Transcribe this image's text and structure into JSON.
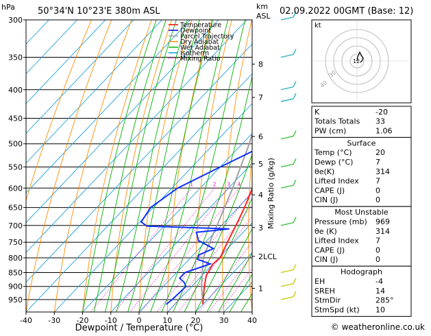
{
  "header": {
    "hpa_label": "hPa",
    "location": "50°34'N  10°23'E  380m  ASL",
    "km_label": "km",
    "asl_label": "ASL",
    "datetime": "02.09.2022  00GMT  (Base: 12)"
  },
  "legend": [
    {
      "label": "Temperature",
      "color": "#ff0000",
      "style": "solid"
    },
    {
      "label": "Dewpoint",
      "color": "#0000ff",
      "style": "solid"
    },
    {
      "label": "Parcel Trajectory",
      "color": "#a0a0a0",
      "style": "solid"
    },
    {
      "label": "Dry Adiabat",
      "color": "#ff8c00",
      "style": "solid"
    },
    {
      "label": "Wet Adiabat",
      "color": "#00b000",
      "style": "solid"
    },
    {
      "label": "Isotherm",
      "color": "#00a0e0",
      "style": "solid"
    },
    {
      "label": "Mixing Ratio",
      "color": "#ff00c0",
      "style": "dotted"
    }
  ],
  "chart_data": {
    "type": "skew-t",
    "xlabel": "Dewpoint / Temperature (°C)",
    "ylabel_right": "Mixing Ratio (g/kg)",
    "pressure_ticks": [
      300,
      350,
      400,
      450,
      500,
      550,
      600,
      650,
      700,
      750,
      800,
      850,
      900,
      950
    ],
    "temp_ticks": [
      -40,
      -30,
      -20,
      -10,
      0,
      10,
      20,
      30,
      40
    ],
    "xlim": [
      -40,
      40
    ],
    "plim": [
      300,
      1000
    ],
    "km_ticks": [
      {
        "label": "8",
        "p": 360
      },
      {
        "label": "7",
        "p": 413
      },
      {
        "label": "6",
        "p": 485
      },
      {
        "label": "5",
        "p": 543
      },
      {
        "label": "4",
        "p": 617
      },
      {
        "label": "3",
        "p": 706
      },
      {
        "label": "2LCL",
        "p": 795
      },
      {
        "label": "1",
        "p": 907
      }
    ],
    "mixing_ratio_labels": [
      "1",
      "2",
      "3",
      "4",
      "6",
      "8",
      "10",
      "16",
      "20",
      "25"
    ],
    "mixing_ratio_values": [
      1,
      2,
      3,
      4,
      6,
      8,
      10,
      16,
      20,
      25
    ],
    "temperature": [
      {
        "p": 969,
        "t": 20
      },
      {
        "p": 950,
        "t": 18.5
      },
      {
        "p": 900,
        "t": 14.5
      },
      {
        "p": 860,
        "t": 11.5
      },
      {
        "p": 820,
        "t": 10
      },
      {
        "p": 800,
        "t": 10.5
      },
      {
        "p": 750,
        "t": 7.8
      },
      {
        "p": 700,
        "t": 5.2
      },
      {
        "p": 650,
        "t": 2.2
      },
      {
        "p": 600,
        "t": -1.5
      },
      {
        "p": 550,
        "t": -5.5
      },
      {
        "p": 500,
        "t": -11
      },
      {
        "p": 450,
        "t": -16.5
      },
      {
        "p": 400,
        "t": -23
      },
      {
        "p": 350,
        "t": -31
      },
      {
        "p": 300,
        "t": -39
      }
    ],
    "dewpoint": [
      {
        "p": 969,
        "t": 7
      },
      {
        "p": 950,
        "t": 7.5
      },
      {
        "p": 900,
        "t": 8
      },
      {
        "p": 885,
        "t": 6
      },
      {
        "p": 870,
        "t": 3
      },
      {
        "p": 850,
        "t": 3
      },
      {
        "p": 820,
        "t": 9
      },
      {
        "p": 805,
        "t": 3
      },
      {
        "p": 790,
        "t": 2
      },
      {
        "p": 770,
        "t": 5
      },
      {
        "p": 745,
        "t": -3
      },
      {
        "p": 720,
        "t": -6.5
      },
      {
        "p": 710,
        "t": 4
      },
      {
        "p": 702,
        "t": -26
      },
      {
        "p": 690,
        "t": -29.5
      },
      {
        "p": 650,
        "t": -31
      },
      {
        "p": 600,
        "t": -28
      },
      {
        "p": 550,
        "t": -20
      },
      {
        "p": 500,
        "t": -11
      },
      {
        "p": 450,
        "t": -14
      },
      {
        "p": 400,
        "t": -22
      },
      {
        "p": 380,
        "t": -20
      },
      {
        "p": 370,
        "t": -28
      },
      {
        "p": 350,
        "t": -29
      },
      {
        "p": 300,
        "t": -44
      }
    ],
    "parcel": [
      {
        "p": 969,
        "t": 20
      },
      {
        "p": 900,
        "t": 13.5
      },
      {
        "p": 800,
        "t": 4.5
      },
      {
        "p": 750,
        "t": 1.5
      },
      {
        "p": 700,
        "t": -1.5
      },
      {
        "p": 600,
        "t": -8.5
      },
      {
        "p": 500,
        "t": -17.5
      },
      {
        "p": 400,
        "t": -30
      },
      {
        "p": 350,
        "t": -38
      },
      {
        "p": 300,
        "t": -47
      }
    ],
    "wind_barbs_p": [
      300,
      350,
      400,
      420,
      490,
      550,
      600,
      700,
      850,
      900,
      950
    ]
  },
  "footer": {
    "copyright": "© weatheronline.co.uk"
  },
  "hodograph": {
    "label": "kt",
    "ring_labels": [
      "30",
      "40"
    ]
  },
  "indices": {
    "rows": [
      {
        "label": "K",
        "value": "-20"
      },
      {
        "label": "Totals Totals",
        "value": "33"
      },
      {
        "label": "PW (cm)",
        "value": "1.06"
      }
    ]
  },
  "surface": {
    "title": "Surface",
    "rows": [
      {
        "label": "Temp (°C)",
        "value": "20"
      },
      {
        "label": "Dewp (°C)",
        "value": "7"
      },
      {
        "label": "θe(K)",
        "value": "314"
      },
      {
        "label": "Lifted Index",
        "value": "7"
      },
      {
        "label": "CAPE (J)",
        "value": "0"
      },
      {
        "label": "CIN (J)",
        "value": "0"
      }
    ]
  },
  "unstable": {
    "title": "Most Unstable",
    "rows": [
      {
        "label": "Pressure (mb)",
        "value": "969"
      },
      {
        "label": "θe (K)",
        "value": "314"
      },
      {
        "label": "Lifted Index",
        "value": "7"
      },
      {
        "label": "CAPE (J)",
        "value": "0"
      },
      {
        "label": "CIN (J)",
        "value": "0"
      }
    ]
  },
  "hodo_table": {
    "title": "Hodograph",
    "rows": [
      {
        "label": "EH",
        "value": "-4"
      },
      {
        "label": "SREH",
        "value": "14"
      },
      {
        "label": "StmDir",
        "value": "285°"
      },
      {
        "label": "StmSpd (kt)",
        "value": "10"
      }
    ]
  }
}
